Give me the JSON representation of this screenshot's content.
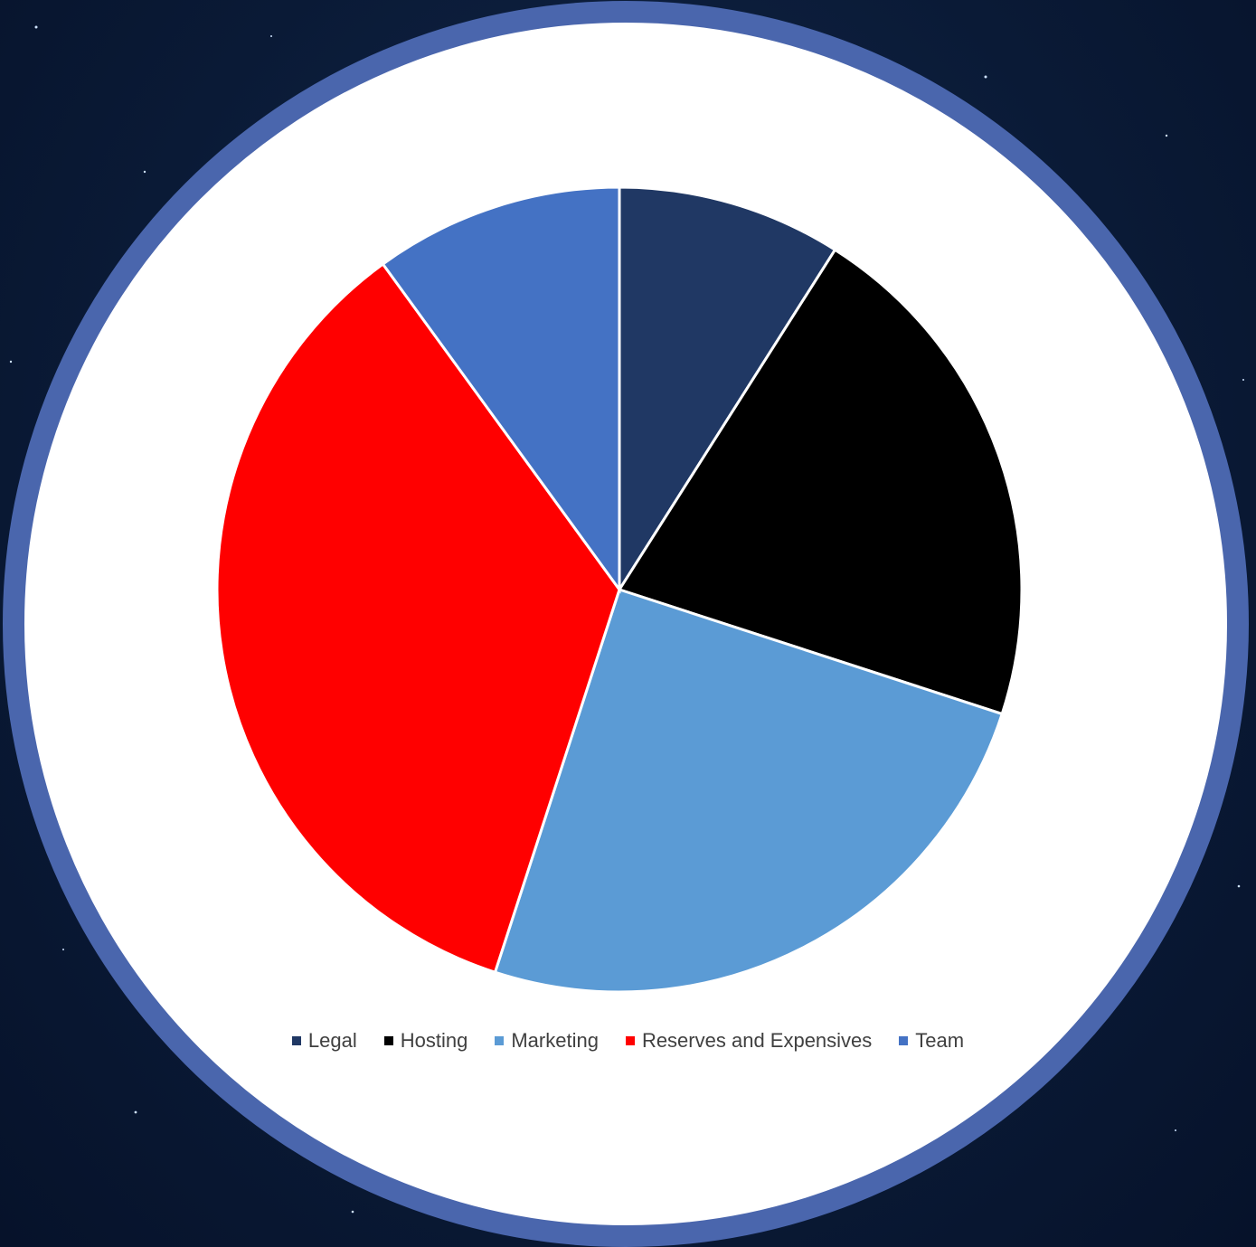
{
  "chart_data": {
    "type": "pie",
    "categories": [
      "Legal",
      "Hosting",
      "Marketing",
      "Reserves and Expensives",
      "Team"
    ],
    "values": [
      9,
      21,
      25,
      35,
      10
    ],
    "colors": [
      "#203864",
      "#000000",
      "#5b9bd5",
      "#ff0000",
      "#4472c4"
    ],
    "legend": "bottom"
  }
}
